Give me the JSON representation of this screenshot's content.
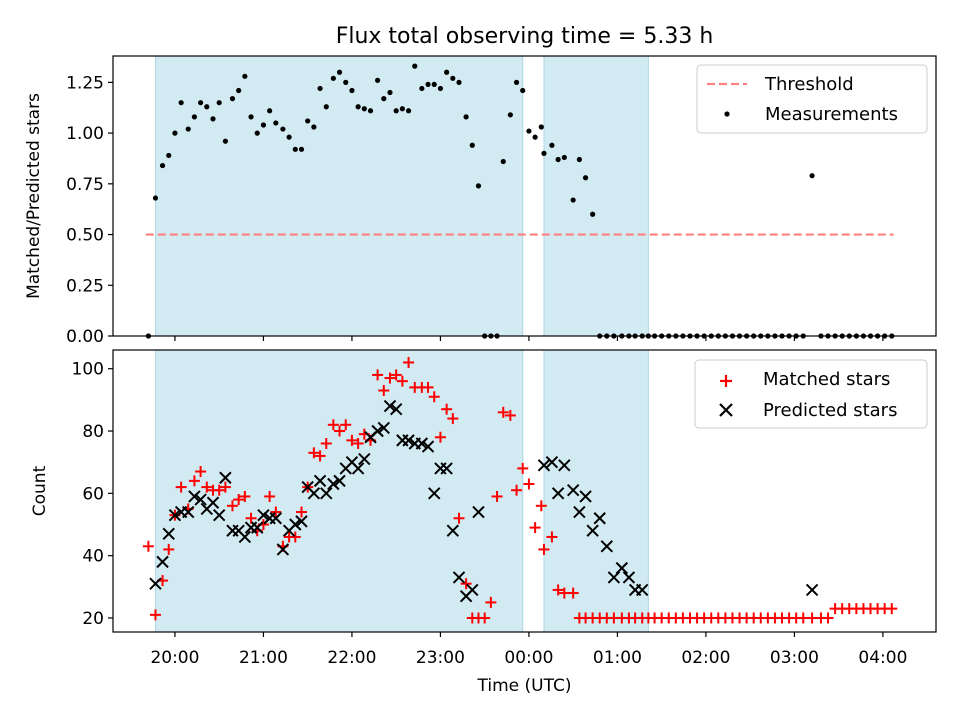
{
  "chart_data": {
    "type": "scatter",
    "title": "Flux total observing time = 5.33 h",
    "xlabel": "Time (UTC)",
    "x_unit": "hours after 00:00 UTC (negative = evening before)",
    "xlim": [
      -4.7,
      4.6
    ],
    "x_ticks": [
      {
        "value": -4.0,
        "label": "20:00"
      },
      {
        "value": -3.0,
        "label": "21:00"
      },
      {
        "value": -2.0,
        "label": "22:00"
      },
      {
        "value": -1.0,
        "label": "23:00"
      },
      {
        "value": 0.0,
        "label": "00:00"
      },
      {
        "value": 1.0,
        "label": "01:00"
      },
      {
        "value": 2.0,
        "label": "02:00"
      },
      {
        "value": 3.0,
        "label": "03:00"
      },
      {
        "value": 4.0,
        "label": "04:00"
      }
    ],
    "observing_windows": [
      [
        -4.22,
        -0.07
      ],
      [
        0.17,
        1.35
      ]
    ],
    "window_color": "#add8e6",
    "top": {
      "ylabel": "Matched/Predicted stars",
      "ylim": [
        0,
        1.38
      ],
      "y_ticks": [
        {
          "value": 0,
          "label": "0.00"
        },
        {
          "value": 0.25,
          "label": "0.25"
        },
        {
          "value": 0.5,
          "label": "0.50"
        },
        {
          "value": 0.75,
          "label": "0.75"
        },
        {
          "value": 1.0,
          "label": "1.00"
        },
        {
          "value": 1.25,
          "label": "1.25"
        }
      ],
      "threshold": {
        "name": "Threshold",
        "value": 0.5,
        "x_range": [
          -4.33,
          4.12
        ],
        "color": "#ff8080"
      },
      "measurements": {
        "name": "Measurements",
        "color": "#000000",
        "x": [
          -4.3,
          -4.22,
          -4.14,
          -4.07,
          -4.0,
          -3.93,
          -3.85,
          -3.78,
          -3.71,
          -3.64,
          -3.57,
          -3.5,
          -3.43,
          -3.35,
          -3.28,
          -3.21,
          -3.14,
          -3.07,
          -3.0,
          -2.93,
          -2.86,
          -2.78,
          -2.71,
          -2.64,
          -2.57,
          -2.5,
          -2.43,
          -2.36,
          -2.29,
          -2.21,
          -2.14,
          -2.07,
          -2.0,
          -1.93,
          -1.86,
          -1.79,
          -1.71,
          -1.64,
          -1.57,
          -1.5,
          -1.43,
          -1.36,
          -1.29,
          -1.21,
          -1.14,
          -1.07,
          -1.0,
          -0.93,
          -0.86,
          -0.79,
          -0.71,
          -0.64,
          -0.57,
          -0.5,
          -0.43,
          -0.36,
          -0.29,
          -0.21,
          -0.14,
          -0.07,
          0.0,
          0.07,
          0.14,
          0.17,
          0.26,
          0.33,
          0.4,
          0.5,
          0.57,
          0.64,
          0.72,
          0.8,
          0.88,
          0.96,
          1.05,
          1.13,
          1.2,
          1.28,
          1.35,
          1.42,
          1.5,
          1.58,
          1.66,
          1.74,
          1.82,
          1.9,
          1.98,
          2.06,
          2.14,
          2.22,
          2.3,
          2.38,
          2.46,
          2.54,
          2.62,
          2.7,
          2.78,
          2.86,
          2.94,
          3.02,
          3.1,
          3.2,
          3.3,
          3.38,
          3.46,
          3.54,
          3.62,
          3.7,
          3.78,
          3.86,
          3.94,
          4.02,
          4.1
        ],
        "y": [
          0.0,
          0.68,
          0.84,
          0.89,
          1.0,
          1.15,
          1.02,
          1.08,
          1.15,
          1.13,
          1.07,
          1.15,
          0.96,
          1.17,
          1.21,
          1.28,
          1.08,
          1.0,
          1.04,
          1.11,
          1.05,
          1.02,
          0.98,
          0.92,
          0.92,
          1.06,
          1.03,
          1.22,
          1.13,
          1.27,
          1.3,
          1.25,
          1.21,
          1.13,
          1.12,
          1.11,
          1.26,
          1.17,
          1.2,
          1.11,
          1.12,
          1.11,
          1.33,
          1.22,
          1.24,
          1.24,
          1.22,
          1.3,
          1.27,
          1.25,
          1.08,
          0.94,
          0.74,
          0.0,
          0.0,
          0.0,
          0.86,
          1.09,
          1.25,
          1.21,
          1.01,
          0.98,
          1.03,
          0.9,
          0.94,
          0.87,
          0.88,
          0.67,
          0.87,
          0.78,
          0.6,
          0.0,
          0.0,
          0.0,
          0.0,
          0.0,
          0.0,
          0.0,
          0.0,
          0.0,
          0.0,
          0.0,
          0.0,
          0.0,
          0.0,
          0.0,
          0.0,
          0.0,
          0.0,
          0.0,
          0.0,
          0.0,
          0.0,
          0.0,
          0.0,
          0.0,
          0.0,
          0.0,
          0.0,
          0.0,
          0.0,
          0.79,
          0.0,
          0.0,
          0.0,
          0.0,
          0.0,
          0.0,
          0.0,
          0.0,
          0.0,
          0.0,
          0.0
        ]
      }
    },
    "bottom": {
      "ylabel": "Count",
      "ylim": [
        15.5,
        106
      ],
      "y_ticks": [
        {
          "value": 20,
          "label": "20"
        },
        {
          "value": 40,
          "label": "40"
        },
        {
          "value": 60,
          "label": "60"
        },
        {
          "value": 80,
          "label": "80"
        },
        {
          "value": 100,
          "label": "100"
        }
      ],
      "series": [
        {
          "name": "Matched stars",
          "color": "#ff0000",
          "marker": "plus",
          "x": [
            -4.3,
            -4.22,
            -4.14,
            -4.07,
            -4.0,
            -3.93,
            -3.85,
            -3.78,
            -3.71,
            -3.64,
            -3.57,
            -3.5,
            -3.43,
            -3.35,
            -3.28,
            -3.21,
            -3.14,
            -3.07,
            -3.0,
            -2.93,
            -2.86,
            -2.78,
            -2.71,
            -2.64,
            -2.57,
            -2.5,
            -2.43,
            -2.36,
            -2.29,
            -2.21,
            -2.14,
            -2.07,
            -2.0,
            -1.93,
            -1.86,
            -1.79,
            -1.71,
            -1.64,
            -1.57,
            -1.5,
            -1.43,
            -1.36,
            -1.29,
            -1.21,
            -1.14,
            -1.07,
            -1.0,
            -0.93,
            -0.86,
            -0.79,
            -0.71,
            -0.64,
            -0.57,
            -0.5,
            -0.43,
            -0.36,
            -0.29,
            -0.21,
            -0.14,
            -0.07,
            0.0,
            0.07,
            0.14,
            0.17,
            0.26,
            0.33,
            0.4,
            0.5,
            0.57,
            0.64,
            0.72,
            0.8,
            0.88,
            0.96,
            1.05,
            1.13,
            1.2,
            1.28,
            1.35,
            1.42,
            1.5,
            1.58,
            1.66,
            1.74,
            1.82,
            1.9,
            1.98,
            2.06,
            2.14,
            2.22,
            2.3,
            2.38,
            2.46,
            2.54,
            2.62,
            2.7,
            2.78,
            2.86,
            2.94,
            3.02,
            3.1,
            3.2,
            3.3,
            3.38,
            3.46,
            3.54,
            3.62,
            3.7,
            3.78,
            3.86,
            3.94,
            4.02,
            4.1
          ],
          "y": [
            43,
            21,
            32,
            42,
            53,
            62,
            55,
            64,
            67,
            62,
            61,
            61,
            62,
            56,
            58,
            59,
            52,
            48,
            50,
            59,
            54,
            43,
            46,
            46,
            54,
            62,
            73,
            72,
            76,
            82,
            80,
            82,
            77,
            76,
            79,
            77,
            98,
            93,
            97,
            98,
            96,
            102,
            94,
            94,
            94,
            91,
            78,
            87,
            84,
            52,
            31,
            20,
            20,
            20,
            25,
            59,
            86,
            85,
            61,
            68,
            63,
            49,
            56,
            42,
            46,
            29,
            28,
            28,
            20,
            20,
            20,
            20,
            20,
            20,
            20,
            20,
            20,
            20,
            20,
            20,
            20,
            20,
            20,
            20,
            20,
            20,
            20,
            20,
            20,
            20,
            20,
            20,
            20,
            20,
            20,
            20,
            20,
            20,
            20,
            20,
            20,
            20,
            20,
            20,
            23,
            23,
            23,
            23,
            23,
            23,
            23,
            23,
            23
          ]
        },
        {
          "name": "Predicted stars",
          "color": "#000000",
          "marker": "x",
          "x": [
            -4.22,
            -4.14,
            -4.07,
            -4.0,
            -3.93,
            -3.85,
            -3.78,
            -3.71,
            -3.64,
            -3.57,
            -3.5,
            -3.43,
            -3.35,
            -3.28,
            -3.21,
            -3.14,
            -3.07,
            -3.0,
            -2.93,
            -2.86,
            -2.78,
            -2.71,
            -2.64,
            -2.57,
            -2.5,
            -2.43,
            -2.36,
            -2.29,
            -2.21,
            -2.14,
            -2.07,
            -2.0,
            -1.93,
            -1.86,
            -1.79,
            -1.71,
            -1.64,
            -1.57,
            -1.5,
            -1.43,
            -1.36,
            -1.29,
            -1.21,
            -1.14,
            -1.07,
            -1.0,
            -0.93,
            -0.86,
            -0.79,
            -0.71,
            -0.64,
            -0.57,
            0.17,
            0.26,
            0.33,
            0.4,
            0.5,
            0.57,
            0.64,
            0.72,
            0.8,
            0.88,
            0.96,
            1.05,
            1.13,
            1.2,
            1.28,
            3.2
          ],
          "y": [
            31,
            38,
            47,
            53,
            54,
            54,
            59,
            58,
            55,
            57,
            53,
            65,
            48,
            48,
            46,
            49,
            49,
            53,
            52,
            52,
            42,
            48,
            50,
            51,
            62,
            60,
            64,
            60,
            63,
            64,
            68,
            70,
            68,
            71,
            78,
            80,
            81,
            88,
            87,
            77,
            77,
            76,
            76,
            75,
            60,
            68,
            68,
            48,
            33,
            27,
            29,
            54,
            69,
            70,
            60,
            69,
            61,
            54,
            59,
            48,
            52,
            43,
            33,
            36,
            33,
            29,
            29,
            29
          ]
        }
      ]
    }
  }
}
